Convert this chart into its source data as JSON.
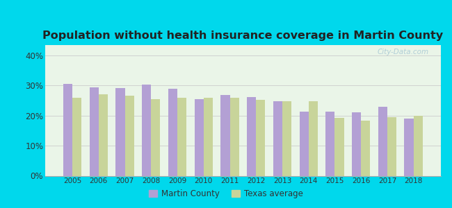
{
  "title": "Population without health insurance coverage in Martin County",
  "years": [
    2005,
    2006,
    2007,
    2008,
    2009,
    2010,
    2011,
    2012,
    2013,
    2014,
    2015,
    2016,
    2017,
    2018
  ],
  "martin_county": [
    0.305,
    0.293,
    0.292,
    0.302,
    0.29,
    0.255,
    0.268,
    0.262,
    0.248,
    0.212,
    0.213,
    0.211,
    0.23,
    0.19
  ],
  "texas_avg": [
    0.26,
    0.27,
    0.265,
    0.255,
    0.26,
    0.26,
    0.258,
    0.253,
    0.248,
    0.248,
    0.192,
    0.182,
    0.194,
    0.2
  ],
  "martin_color": "#b3a0d4",
  "texas_color": "#c8d49a",
  "background_outer": "#00d8ec",
  "background_inner": "#eaf5e8",
  "title_fontsize": 11.5,
  "yticks": [
    0.0,
    0.1,
    0.2,
    0.3,
    0.4
  ],
  "ylim": [
    0,
    0.435
  ],
  "legend_martin": "Martin County",
  "legend_texas": "Texas average",
  "bar_width": 0.35
}
